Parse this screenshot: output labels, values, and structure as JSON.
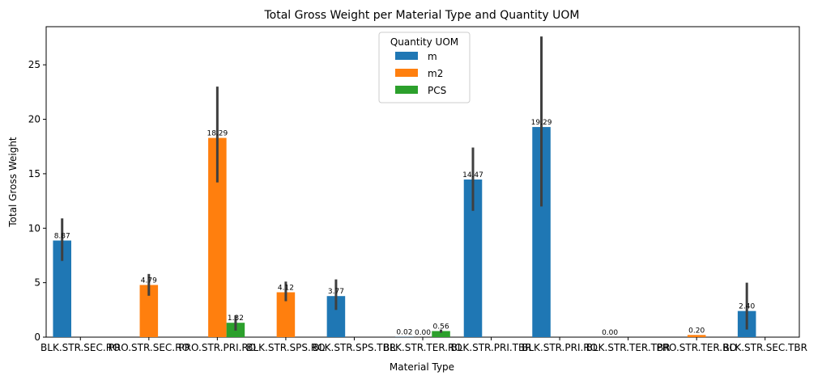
{
  "chart_data": {
    "type": "bar",
    "title": "Total Gross Weight per Material Type and Quantity UOM",
    "xlabel": "Material Type",
    "ylabel": "Total Gross Weight",
    "ylim": [
      0,
      28.5
    ],
    "yticks": [
      0,
      5,
      10,
      15,
      20,
      25
    ],
    "grid": false,
    "legend": {
      "title": "Quantity UOM",
      "placement": "top-center"
    },
    "categories": [
      "BLK.STR.SEC.RO",
      "PRO.STR.SEC.RO",
      "PRO.STR.PRI.RO",
      "BLK.STR.SPS.RO",
      "BLK.STR.SPS.TBR",
      "BLK.STR.TER.RO",
      "BLK.STR.PRI.TBR",
      "BLK.STR.PRI.RO",
      "BLK.STR.TER.TBR",
      "PRO.STR.TER.RO",
      "BLK.STR.SEC.TBR"
    ],
    "series": [
      {
        "name": "m",
        "color": "#1f77b4",
        "values": [
          8.87,
          null,
          null,
          null,
          3.77,
          0.02,
          14.47,
          19.29,
          0.0,
          null,
          2.4
        ],
        "err_low": [
          7.0,
          null,
          null,
          null,
          2.5,
          null,
          11.6,
          12.0,
          null,
          null,
          0.7
        ],
        "err_high": [
          10.9,
          null,
          null,
          null,
          5.3,
          null,
          17.4,
          27.6,
          null,
          null,
          5.0
        ]
      },
      {
        "name": "m2",
        "color": "#ff7f0e",
        "values": [
          null,
          4.79,
          18.29,
          4.12,
          null,
          0.0,
          null,
          null,
          null,
          0.2,
          null
        ],
        "err_low": [
          null,
          3.8,
          14.2,
          3.3,
          null,
          null,
          null,
          null,
          null,
          null,
          null
        ],
        "err_high": [
          null,
          5.8,
          23.0,
          5.1,
          null,
          null,
          null,
          null,
          null,
          null,
          null
        ]
      },
      {
        "name": "PCS",
        "color": "#2ca02c",
        "values": [
          null,
          null,
          1.32,
          null,
          null,
          0.56,
          null,
          null,
          null,
          null,
          null
        ],
        "err_low": [
          null,
          null,
          0.6,
          null,
          null,
          0.4,
          null,
          null,
          null,
          null,
          null
        ],
        "err_high": [
          null,
          null,
          2.0,
          null,
          null,
          0.7,
          null,
          null,
          null,
          null,
          null
        ]
      }
    ],
    "data_labels": [
      {
        "category": 0,
        "series": 0,
        "text": "8.87"
      },
      {
        "category": 1,
        "series": 1,
        "text": "4.79"
      },
      {
        "category": 2,
        "series": 1,
        "text": "18.29"
      },
      {
        "category": 2,
        "series": 2,
        "text": "1.32"
      },
      {
        "category": 3,
        "series": 1,
        "text": "4.12"
      },
      {
        "category": 4,
        "series": 0,
        "text": "3.77"
      },
      {
        "category": 5,
        "series": 0,
        "text": "0.02"
      },
      {
        "category": 5,
        "series": 1,
        "text": "0.00"
      },
      {
        "category": 5,
        "series": 2,
        "text": "0.56"
      },
      {
        "category": 6,
        "series": 0,
        "text": "14.47"
      },
      {
        "category": 7,
        "series": 0,
        "text": "19.29"
      },
      {
        "category": 8,
        "series": 0,
        "text": "0.00"
      },
      {
        "category": 9,
        "series": 1,
        "text": "0.20"
      },
      {
        "category": 10,
        "series": 0,
        "text": "2.40"
      }
    ]
  }
}
